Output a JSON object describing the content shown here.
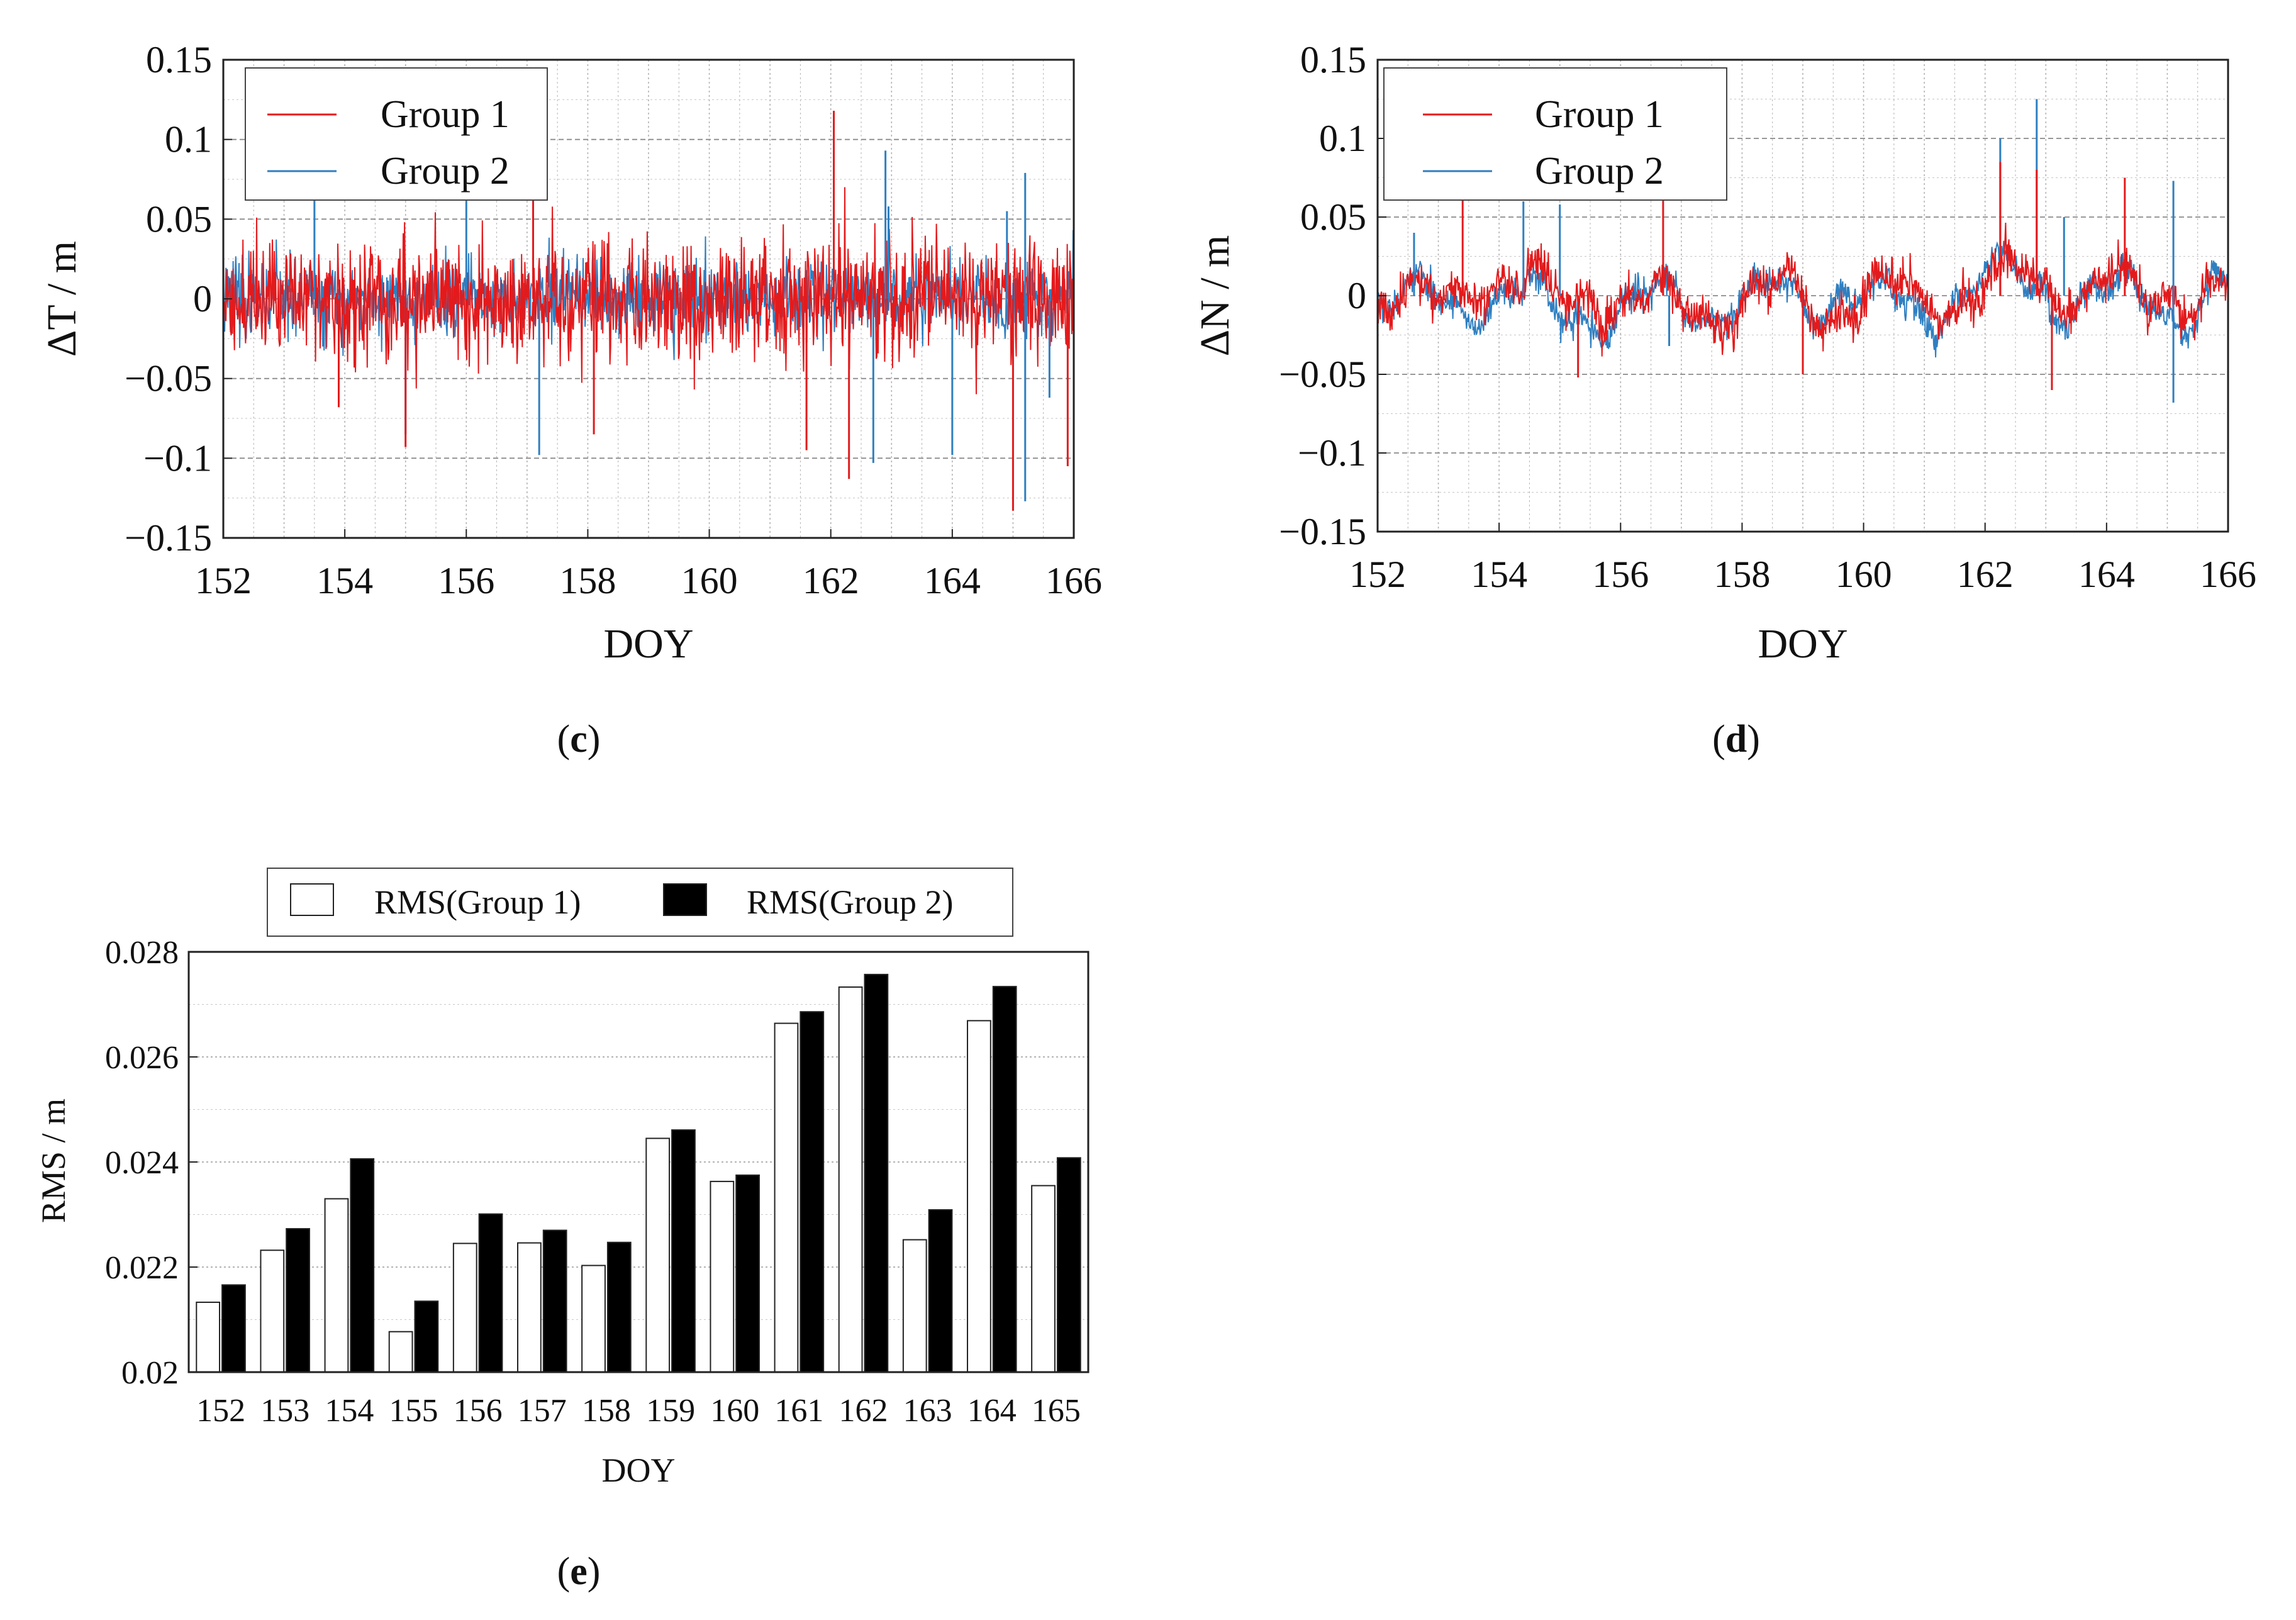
{
  "colors": {
    "group1": "#e31a1c",
    "group2": "#2f7fc1",
    "grid": "#b4b4b4"
  },
  "chart_data": [
    {
      "id": "c",
      "type": "line",
      "panel_label": "c",
      "xlabel": "DOY",
      "ylabel": "ΔT / m",
      "xlim": [
        152,
        166
      ],
      "ylim": [
        -0.15,
        0.15
      ],
      "xticks": [
        152,
        154,
        156,
        158,
        160,
        162,
        164,
        166
      ],
      "xtick_labels": [
        "152",
        "154",
        "156",
        "158",
        "160",
        "162",
        "164",
        "166"
      ],
      "yticks": [
        -0.15,
        -0.1,
        -0.05,
        0,
        0.05,
        0.1,
        0.15
      ],
      "ytick_labels": [
        "−0.15",
        "−0.1",
        "−0.05",
        "0",
        "0.05",
        "0.1",
        "0.15"
      ],
      "legend": [
        "Group 1",
        "Group 2"
      ],
      "legend_position": "top-left",
      "series": [
        {
          "name": "Group 1",
          "noise_amplitude": 0.034,
          "seed": 11,
          "spikes": [
            [
              162.05,
              0.118
            ],
            [
              161.6,
              -0.095
            ],
            [
              165.0,
              -0.133
            ],
            [
              162.3,
              -0.113
            ],
            [
              165.9,
              -0.105
            ],
            [
              153.9,
              -0.068
            ],
            [
              158.1,
              -0.085
            ],
            [
              166.0,
              0.082
            ],
            [
              157.1,
              0.068
            ],
            [
              155.0,
              -0.093
            ]
          ]
        },
        {
          "name": "Group 2",
          "noise_amplitude": 0.022,
          "seed": 23,
          "spikes": [
            [
              162.9,
              0.093
            ],
            [
              165.2,
              0.079
            ],
            [
              165.2,
              -0.127
            ],
            [
              155.0,
              -0.085
            ],
            [
              162.7,
              -0.103
            ],
            [
              157.2,
              -0.098
            ],
            [
              164.0,
              -0.098
            ],
            [
              156.0,
              0.068
            ],
            [
              153.5,
              0.066
            ],
            [
              162.95,
              0.058
            ],
            [
              164.9,
              0.055
            ],
            [
              165.6,
              -0.062
            ]
          ]
        }
      ]
    },
    {
      "id": "d",
      "type": "line",
      "panel_label": "d",
      "xlabel": "DOY",
      "ylabel": "ΔN / m",
      "xlim": [
        152,
        166
      ],
      "ylim": [
        -0.15,
        0.15
      ],
      "xticks": [
        152,
        154,
        156,
        158,
        160,
        162,
        164,
        166
      ],
      "xtick_labels": [
        "152",
        "154",
        "156",
        "158",
        "160",
        "162",
        "164",
        "166"
      ],
      "yticks": [
        -0.15,
        -0.1,
        -0.05,
        0,
        0.05,
        0.1,
        0.15
      ],
      "ytick_labels": [
        "−0.15",
        "−0.1",
        "−0.05",
        "0",
        "0.05",
        "0.1",
        "0.15"
      ],
      "legend": [
        "Group 1",
        "Group 2"
      ],
      "legend_position": "top-left",
      "series": [
        {
          "name": "Group 1",
          "noise_amplitude": 0.012,
          "seed": 37,
          "spikes": [
            [
              162.25,
              0.085
            ],
            [
              162.85,
              0.08
            ],
            [
              164.3,
              0.075
            ],
            [
              153.4,
              0.063
            ],
            [
              156.7,
              0.062
            ],
            [
              152.0,
              -0.045
            ],
            [
              155.3,
              -0.052
            ],
            [
              163.1,
              -0.06
            ],
            [
              159.0,
              -0.05
            ]
          ]
        },
        {
          "name": "Group 2",
          "noise_amplitude": 0.009,
          "seed": 53,
          "spikes": [
            [
              162.85,
              0.125
            ],
            [
              162.25,
              0.1
            ],
            [
              165.1,
              0.073
            ],
            [
              165.1,
              -0.068
            ],
            [
              152.6,
              0.04
            ],
            [
              155.0,
              0.058
            ],
            [
              156.8,
              -0.032
            ],
            [
              154.4,
              0.06
            ],
            [
              163.3,
              0.05
            ]
          ]
        }
      ]
    },
    {
      "id": "e",
      "type": "bar",
      "panel_label": "e",
      "xlabel": "DOY",
      "ylabel": "RMS / m",
      "ylim": [
        0.02,
        0.028
      ],
      "yticks": [
        0.02,
        0.022,
        0.024,
        0.026,
        0.028
      ],
      "ytick_labels": [
        "0.02",
        "0.022",
        "0.024",
        "0.026",
        "0.028"
      ],
      "categories": [
        "152",
        "153",
        "154",
        "155",
        "156",
        "157",
        "158",
        "159",
        "160",
        "161",
        "162",
        "163",
        "164",
        "165"
      ],
      "legend": [
        "RMS(Group 1)",
        "RMS(Group 2)"
      ],
      "legend_position": "top",
      "series": [
        {
          "name": "RMS(Group 1)",
          "fill": "#ffffff",
          "values": [
            0.02133,
            0.02232,
            0.0233,
            0.02077,
            0.02245,
            0.02246,
            0.02203,
            0.02445,
            0.02363,
            0.02664,
            0.02733,
            0.02252,
            0.02669,
            0.02355
          ]
        },
        {
          "name": "RMS(Group 2)",
          "fill": "#000000",
          "values": [
            0.02166,
            0.02273,
            0.02406,
            0.02135,
            0.02301,
            0.0227,
            0.02247,
            0.02461,
            0.02375,
            0.02686,
            0.02757,
            0.02309,
            0.02734,
            0.02408
          ]
        }
      ]
    }
  ]
}
